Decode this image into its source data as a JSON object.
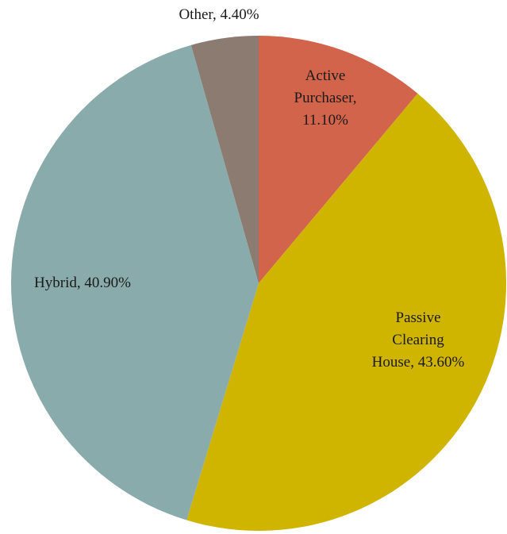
{
  "chart_data": {
    "type": "pie",
    "values": [
      11.1,
      43.6,
      40.9,
      4.4
    ],
    "value_labels": [
      "Active Purchaser, 11.10%",
      "Passive Clearing House, 43.60%",
      "Hybrid, 40.90%",
      "Other, 4.40%"
    ],
    "colors": [
      "#d2644b",
      "#cfb400",
      "#8aabab",
      "#8c7b70"
    ]
  }
}
